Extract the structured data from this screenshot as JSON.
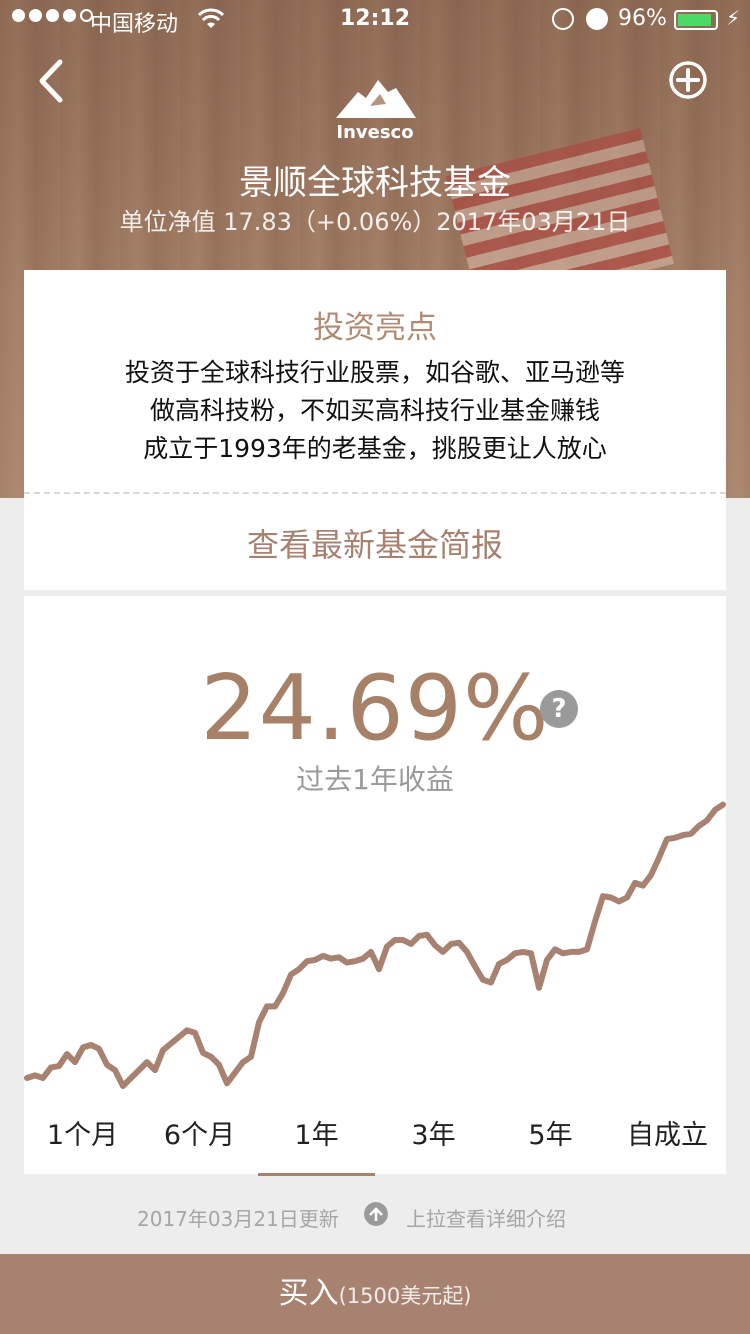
{
  "status_bar": {
    "carrier": "中国移动",
    "time": "12:12",
    "battery_percent": "96%",
    "battery_level": 0.96,
    "signal_bars_filled": 4,
    "signal_bars_total": 5,
    "icons": [
      "wifi-icon",
      "rotation-lock-icon",
      "alarm-icon",
      "battery-icon",
      "charging-bolt-icon"
    ]
  },
  "nav": {
    "back_icon": "chevron-left-icon",
    "add_icon": "plus-circle-icon"
  },
  "brand": {
    "logo_text": "Invesco",
    "logo_icon": "mountain-logo-icon"
  },
  "fund": {
    "name": "景顺全球科技基金",
    "nav_line": "单位净值 17.83（+0.06%）2017年03月21日"
  },
  "highlights": {
    "title": "投资亮点",
    "lines": [
      "投资于全球科技行业股票，如谷歌、亚马逊等",
      "做高科技粉，不如买高科技行业基金赚钱",
      "成立于1993年的老基金，挑股更让人放心"
    ],
    "report_link": "查看最新基金简报"
  },
  "performance": {
    "return_value": "24.69%",
    "return_label": "过去1年收益",
    "help_icon": "question-circle-icon",
    "help_text": "?",
    "tabs": [
      {
        "label": "1个月",
        "active": false
      },
      {
        "label": "6个月",
        "active": false
      },
      {
        "label": "1年",
        "active": true
      },
      {
        "label": "3年",
        "active": false
      },
      {
        "label": "5年",
        "active": false
      },
      {
        "label": "自成立",
        "active": false
      }
    ],
    "accent_color": "#a78270"
  },
  "chart_data": {
    "type": "line",
    "title": "",
    "xlabel": "",
    "ylabel": "",
    "series": [
      {
        "name": "",
        "values": [
          3.0,
          4.0,
          3.0,
          7.0,
          7.5,
          12.0,
          9.0,
          14.5,
          15.5,
          14.0,
          8.0,
          6.0,
          0.0,
          3.0,
          6.0,
          9.0,
          6.0,
          13.5,
          16.0,
          18.5,
          21.0,
          20.0,
          12.5,
          11.0,
          8.0,
          1.0,
          5.0,
          9.0,
          11.0,
          24.0,
          30.0,
          30.0,
          35.0,
          42.0,
          44.0,
          47.0,
          47.5,
          49.0,
          48.0,
          48.5,
          46.5,
          47.0,
          48.0,
          50.5,
          44.0,
          52.5,
          55.0,
          55.0,
          53.5,
          56.5,
          57.0,
          53.0,
          50.5,
          53.5,
          54.0,
          50.5,
          45.0,
          40.0,
          39.0,
          46.0,
          47.5,
          50.0,
          50.5,
          50.0,
          37.0,
          47.5,
          51.5,
          50.0,
          50.5,
          50.5,
          51.5,
          62.0,
          71.5,
          71.0,
          69.5,
          71.0,
          76.5,
          75.5,
          79.5,
          86.0,
          93.0,
          93.5,
          94.5,
          95.0,
          98.0,
          100.0,
          104.0,
          106.0
        ]
      }
    ],
    "ylim": [
      0,
      110
    ],
    "grid": false,
    "legend": "none"
  },
  "footer": {
    "update_date": "2017年03月21日更新",
    "pull_hint": "上拉查看详细介绍",
    "pull_icon": "arrow-up-circle-icon",
    "buy_label": "买入",
    "buy_sub": "(1500美元起)",
    "buy_color": "#a78270"
  }
}
